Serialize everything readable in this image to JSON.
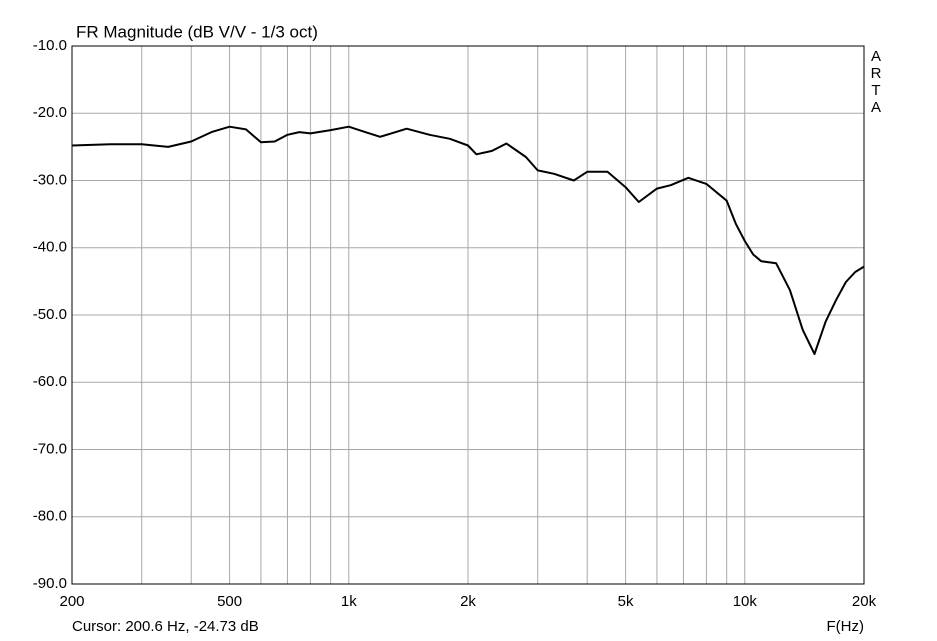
{
  "chart_data": {
    "type": "line",
    "title": "FR Magnitude (dB V/V - 1/3 oct)",
    "watermark_letters": [
      "A",
      "R",
      "T",
      "A"
    ],
    "x_label": "F(Hz)",
    "cursor_text": "Cursor: 200.6 Hz, -24.73 dB",
    "log_x": true,
    "grid": true,
    "xlim": [
      200,
      20000
    ],
    "ylim": [
      -90,
      -10
    ],
    "xticks": [
      200,
      500,
      {
        "value": 1000,
        "label": "1k"
      },
      {
        "value": 2000,
        "label": "2k"
      },
      {
        "value": 5000,
        "label": "5k"
      },
      {
        "value": 10000,
        "label": "10k"
      },
      {
        "value": 20000,
        "label": "20k"
      }
    ],
    "xgrid_minor": [
      300,
      400,
      600,
      700,
      800,
      900,
      3000,
      4000,
      6000,
      7000,
      8000,
      9000
    ],
    "yticks": [
      {
        "value": -10,
        "label": "-10.0"
      },
      {
        "value": -20,
        "label": "-20.0"
      },
      {
        "value": -30,
        "label": "-30.0"
      },
      {
        "value": -40,
        "label": "-40.0"
      },
      {
        "value": -50,
        "label": "-50.0"
      },
      {
        "value": -60,
        "label": "-60.0"
      },
      {
        "value": -70,
        "label": "-70.0"
      },
      {
        "value": -80,
        "label": "-80.0"
      },
      {
        "value": -90,
        "label": "-90.0"
      }
    ],
    "x": [
      200,
      250,
      300,
      350,
      400,
      450,
      500,
      550,
      600,
      650,
      700,
      750,
      800,
      900,
      1000,
      1100,
      1200,
      1400,
      1600,
      1800,
      2000,
      2100,
      2300,
      2500,
      2800,
      3000,
      3300,
      3700,
      4000,
      4500,
      5000,
      5400,
      6000,
      6500,
      7200,
      8000,
      9000,
      9500,
      10000,
      10500,
      11000,
      12000,
      13000,
      14000,
      15000,
      16000,
      17000,
      18000,
      19000,
      20000
    ],
    "series": [
      {
        "color": "#000000",
        "values": [
          -24.8,
          -24.6,
          -24.6,
          -25,
          -24.2,
          -22.8,
          -22,
          -22.4,
          -24.3,
          -24.2,
          -23.2,
          -22.8,
          -23,
          -22.5,
          -22,
          -22.8,
          -23.5,
          -22.3,
          -23.2,
          -23.8,
          -24.8,
          -26.1,
          -25.6,
          -24.5,
          -26.5,
          -28.5,
          -29,
          -30,
          -28.7,
          -28.7,
          -31,
          -33.2,
          -31.2,
          -30.7,
          -29.6,
          -30.5,
          -33,
          -36.5,
          -39,
          -41,
          -42,
          -42.3,
          -46.3,
          -52.2,
          -55.8,
          -51,
          -47.8,
          -45.1,
          -43.6,
          -42.8
        ]
      }
    ]
  }
}
